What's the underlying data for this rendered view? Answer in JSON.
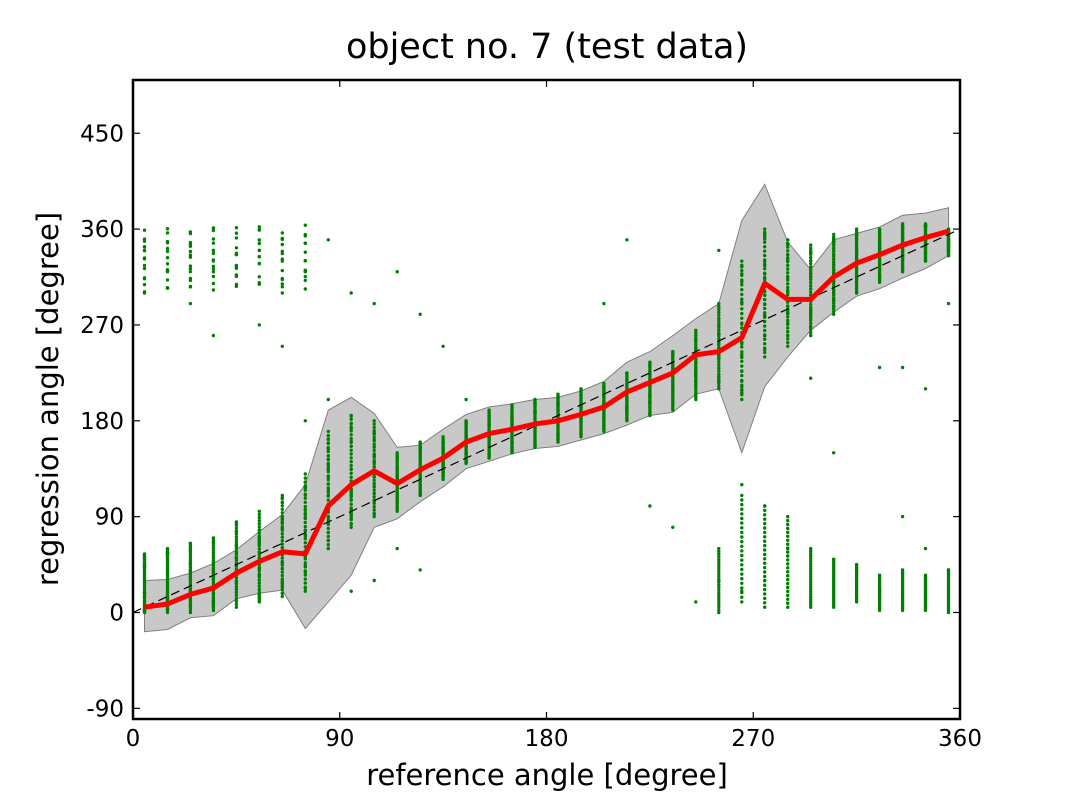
{
  "chart_data": {
    "type": "line",
    "title": "object no. 7 (test data)",
    "xlabel": "reference angle [degree]",
    "ylabel": "regression angle [degree]",
    "xlim": [
      0,
      360
    ],
    "ylim": [
      -100,
      500
    ],
    "xticks": [
      0,
      90,
      180,
      270,
      360
    ],
    "yticks": [
      -90,
      0,
      90,
      180,
      270,
      360,
      450
    ],
    "grid": false,
    "colors": {
      "mean": "#ff0000",
      "points": "#008000",
      "band": "#c8c8c8",
      "band_edge": "#808080",
      "reference": "#000000"
    },
    "reference_line": {
      "style": "dashed",
      "from": [
        0,
        0
      ],
      "to": [
        360,
        360
      ]
    },
    "series": [
      {
        "kind": "mean",
        "x": [
          5,
          15,
          25,
          35,
          45,
          55,
          65,
          75,
          85,
          95,
          105,
          115,
          125,
          135,
          145,
          155,
          165,
          175,
          185,
          195,
          205,
          215,
          225,
          235,
          245,
          255,
          265,
          275,
          285,
          295,
          305,
          315,
          325,
          335,
          345,
          355
        ],
        "y": [
          5,
          8,
          17,
          23,
          37,
          48,
          57,
          55,
          100,
          120,
          133,
          121,
          134,
          145,
          160,
          168,
          172,
          177,
          180,
          186,
          193,
          207,
          216,
          225,
          242,
          245,
          258,
          309,
          294,
          294,
          315,
          328,
          336,
          345,
          352,
          358
        ]
      },
      {
        "kind": "std_band",
        "x": [
          5,
          15,
          25,
          35,
          45,
          55,
          65,
          75,
          85,
          95,
          105,
          115,
          125,
          135,
          145,
          155,
          165,
          175,
          185,
          195,
          205,
          215,
          225,
          235,
          245,
          255,
          265,
          275,
          285,
          295,
          305,
          315,
          325,
          335,
          345,
          355
        ],
        "lower": [
          -18,
          -16,
          -5,
          -3,
          13,
          18,
          21,
          -15,
          10,
          35,
          80,
          88,
          104,
          118,
          135,
          142,
          149,
          154,
          156,
          162,
          168,
          176,
          185,
          188,
          205,
          210,
          150,
          212,
          240,
          265,
          282,
          297,
          304,
          314,
          323,
          335
        ],
        "upper": [
          30,
          31,
          37,
          46,
          59,
          76,
          92,
          120,
          190,
          202,
          187,
          155,
          157,
          172,
          186,
          193,
          196,
          200,
          202,
          208,
          217,
          235,
          245,
          260,
          276,
          290,
          368,
          402,
          348,
          322,
          350,
          356,
          362,
          373,
          375,
          380
        ]
      },
      {
        "kind": "samples",
        "x": [
          5,
          15,
          25,
          35,
          45,
          55,
          65,
          75,
          85,
          95,
          105,
          115,
          125,
          135,
          145,
          155,
          165,
          175,
          185,
          195,
          205,
          215,
          225,
          235,
          245,
          255,
          265,
          275,
          285,
          295,
          305,
          315,
          325,
          335,
          345,
          355
        ],
        "cluster_low": [
          0,
          0,
          0,
          2,
          5,
          10,
          15,
          20,
          60,
          80,
          90,
          95,
          110,
          125,
          140,
          145,
          150,
          155,
          160,
          165,
          170,
          180,
          185,
          190,
          200,
          210,
          200,
          240,
          250,
          260,
          280,
          300,
          310,
          320,
          330,
          335
        ],
        "cluster_high": [
          55,
          60,
          65,
          70,
          85,
          95,
          110,
          130,
          170,
          185,
          180,
          150,
          160,
          165,
          180,
          190,
          195,
          200,
          205,
          210,
          215,
          225,
          235,
          245,
          265,
          290,
          330,
          360,
          350,
          345,
          355,
          360,
          360,
          365,
          365,
          360
        ],
        "stray_points": [
          [
            5,
            300
          ],
          [
            5,
            340
          ],
          [
            15,
            320
          ],
          [
            15,
            305
          ],
          [
            25,
            290
          ],
          [
            25,
            320
          ],
          [
            35,
            260
          ],
          [
            35,
            340
          ],
          [
            45,
            325
          ],
          [
            55,
            270
          ],
          [
            55,
            340
          ],
          [
            65,
            250
          ],
          [
            65,
            300
          ],
          [
            75,
            180
          ],
          [
            75,
            320
          ],
          [
            85,
            200
          ],
          [
            85,
            350
          ],
          [
            95,
            300
          ],
          [
            95,
            20
          ],
          [
            105,
            290
          ],
          [
            105,
            30
          ],
          [
            115,
            320
          ],
          [
            115,
            60
          ],
          [
            125,
            280
          ],
          [
            125,
            40
          ],
          [
            135,
            250
          ],
          [
            145,
            200
          ],
          [
            205,
            290
          ],
          [
            215,
            350
          ],
          [
            225,
            100
          ],
          [
            235,
            80
          ],
          [
            245,
            10
          ],
          [
            255,
            30
          ],
          [
            255,
            340
          ],
          [
            265,
            20
          ],
          [
            265,
            120
          ],
          [
            275,
            30
          ],
          [
            275,
            100
          ],
          [
            285,
            60
          ],
          [
            295,
            10
          ],
          [
            295,
            220
          ],
          [
            305,
            150
          ],
          [
            305,
            50
          ],
          [
            315,
            40
          ],
          [
            325,
            230
          ],
          [
            325,
            20
          ],
          [
            335,
            90
          ],
          [
            335,
            230
          ],
          [
            345,
            60
          ],
          [
            345,
            210
          ],
          [
            355,
            40
          ],
          [
            355,
            290
          ]
        ],
        "wrap_low_clusters": [
          [
            255,
            0,
            60
          ],
          [
            265,
            10,
            110
          ],
          [
            275,
            5,
            100
          ],
          [
            285,
            5,
            90
          ],
          [
            295,
            5,
            60
          ],
          [
            305,
            5,
            50
          ],
          [
            315,
            10,
            45
          ],
          [
            325,
            2,
            35
          ],
          [
            335,
            2,
            40
          ],
          [
            345,
            2,
            35
          ],
          [
            355,
            0,
            40
          ]
        ]
      }
    ]
  }
}
